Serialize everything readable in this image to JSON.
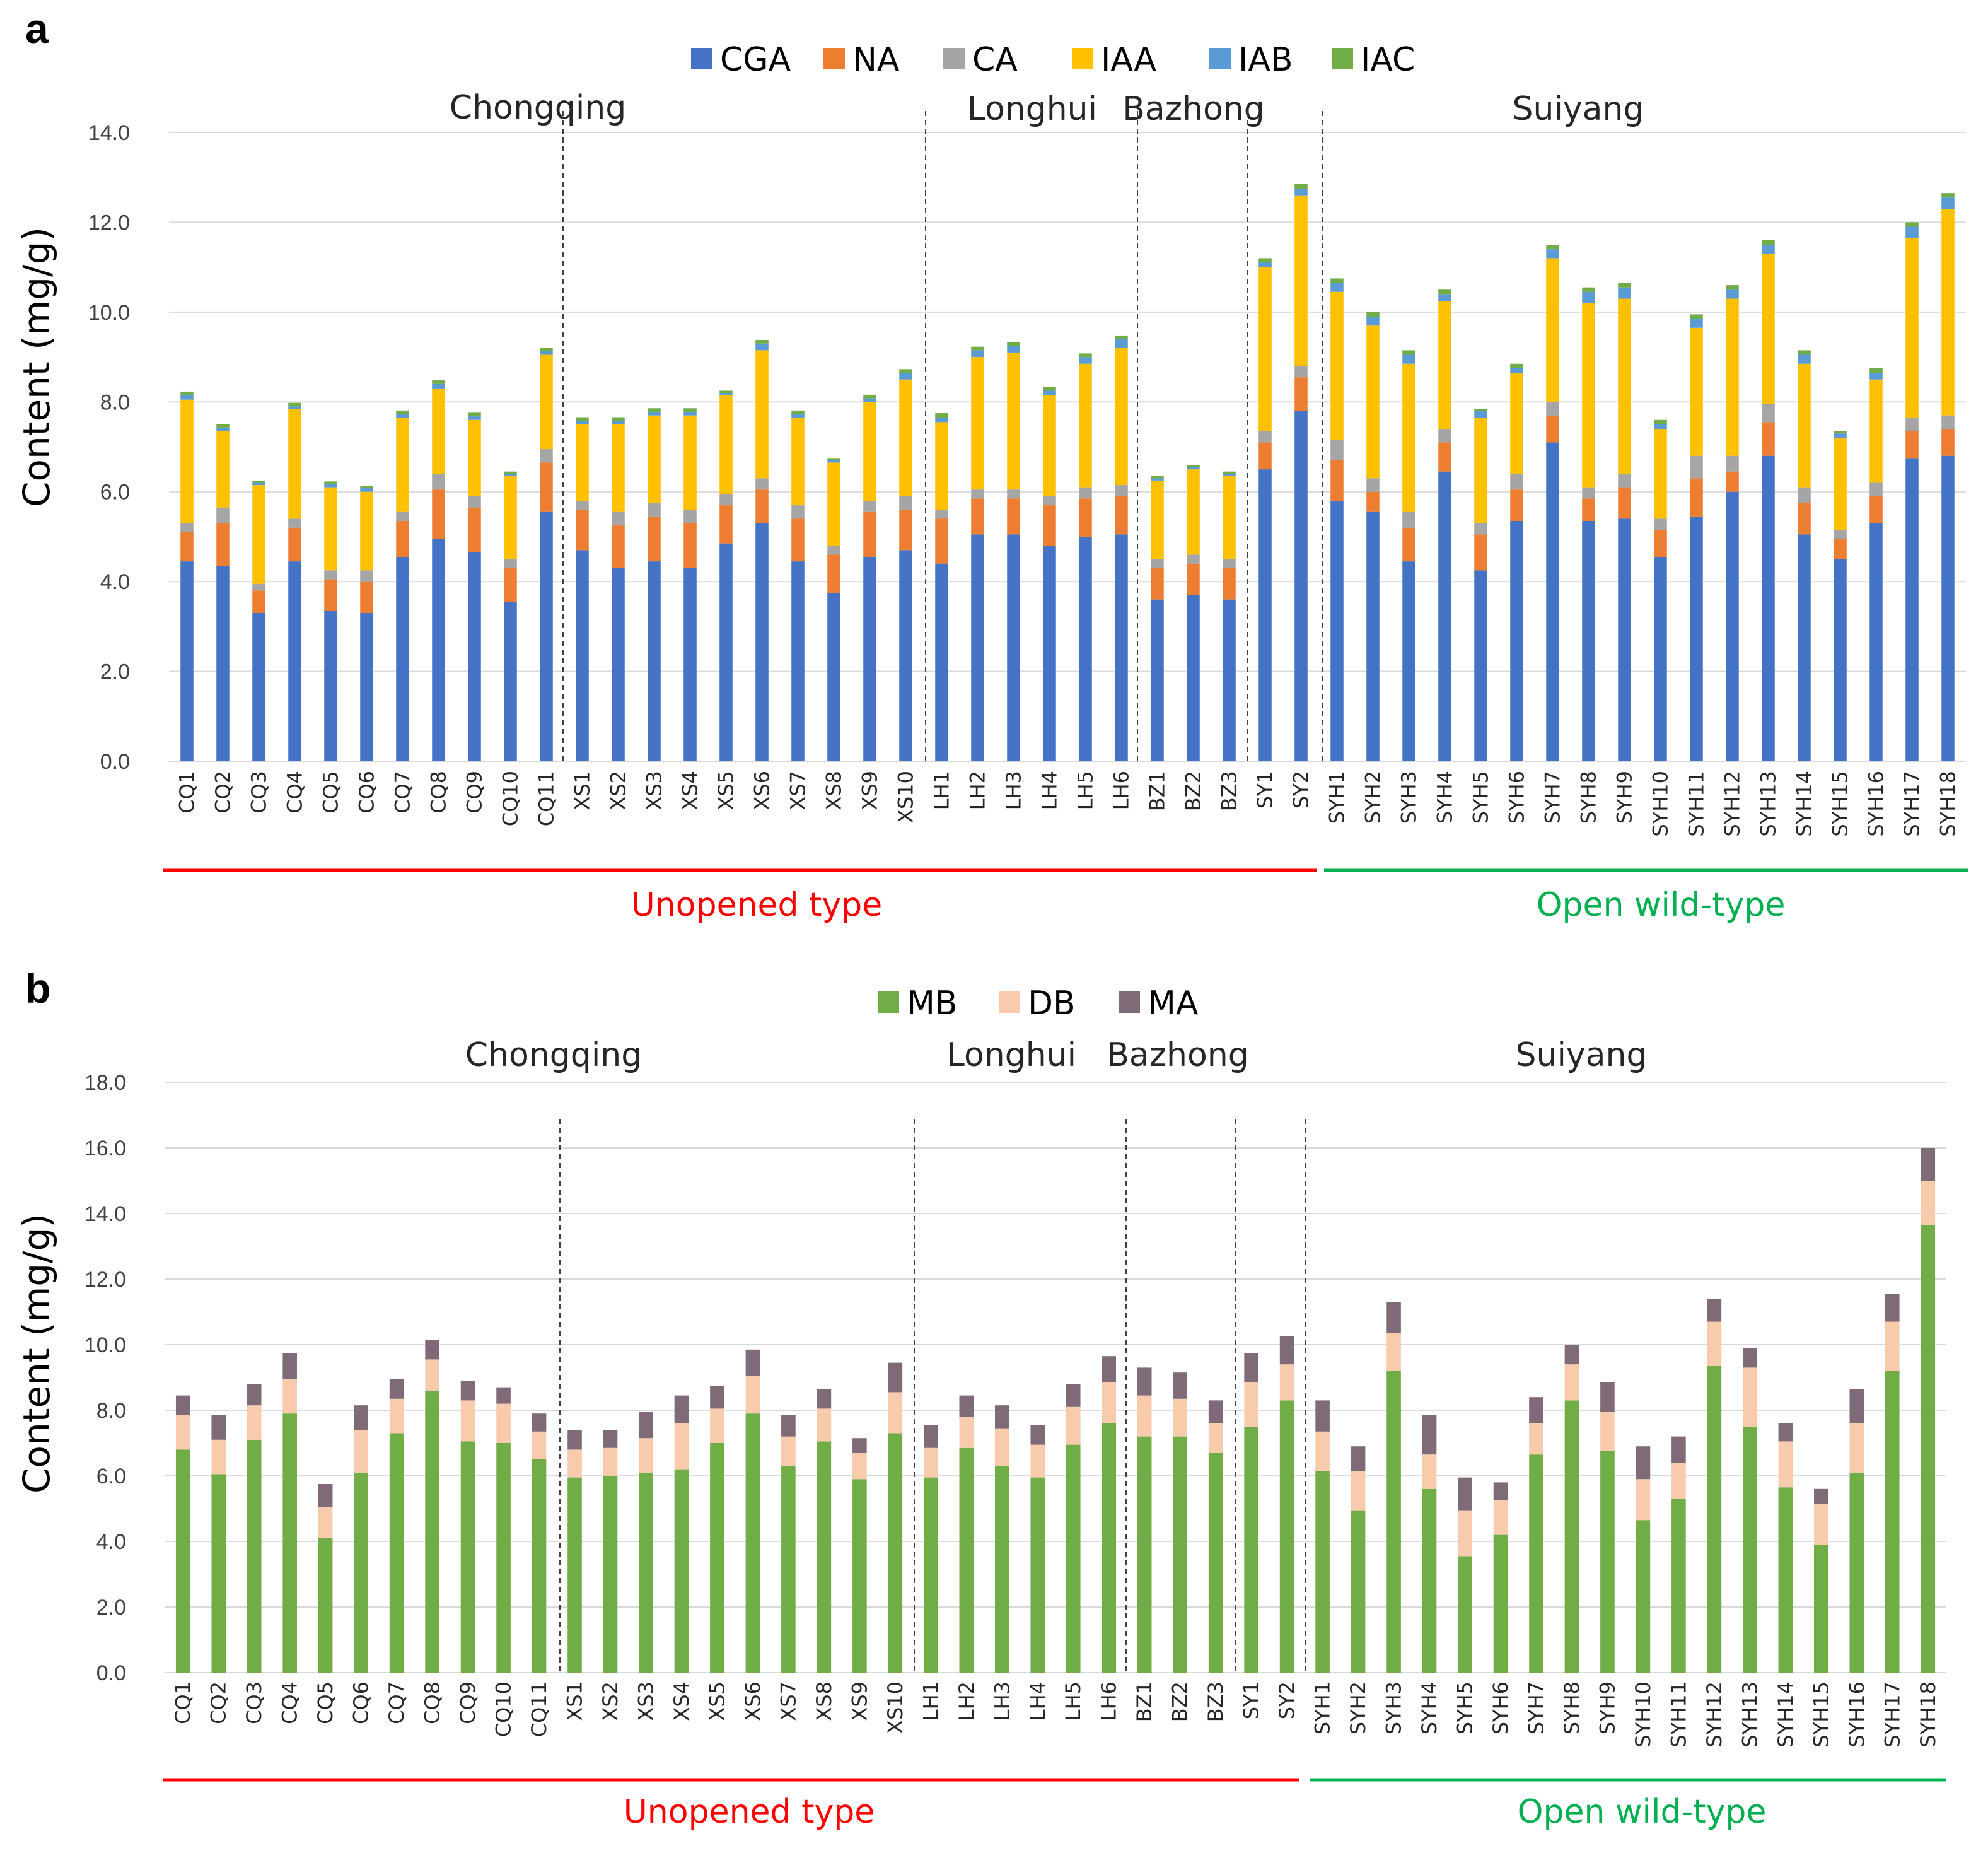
{
  "chart_data": [
    {
      "type": "bar",
      "stacked": true,
      "panel": "a",
      "ylabel": "Content (mg/g)",
      "ylim": [
        0,
        14
      ],
      "yticks": [
        "0.0",
        "2.0",
        "4.0",
        "6.0",
        "8.0",
        "10.0",
        "12.0",
        "14.0"
      ],
      "grid": true,
      "legend_position": "top",
      "categories": [
        "CQ1",
        "CQ2",
        "CQ3",
        "CQ4",
        "CQ5",
        "CQ6",
        "CQ7",
        "CQ8",
        "CQ9",
        "CQ10",
        "CQ11",
        "XS1",
        "XS2",
        "XS3",
        "XS4",
        "XS5",
        "XS6",
        "XS7",
        "XS8",
        "XS9",
        "XS10",
        "LH1",
        "LH2",
        "LH3",
        "LH4",
        "LH5",
        "LH6",
        "BZ1",
        "BZ2",
        "BZ3",
        "SY1",
        "SY2",
        "SYH1",
        "SYH2",
        "SYH3",
        "SYH4",
        "SYH5",
        "SYH6",
        "SYH7",
        "SYH8",
        "SYH9",
        "SYH10",
        "SYH11",
        "SYH12",
        "SYH13",
        "SYH14",
        "SYH15",
        "SYH16",
        "SYH17",
        "SYH18"
      ],
      "series": [
        {
          "name": "CGA",
          "color": "#4472C4",
          "values": [
            4.45,
            4.35,
            3.3,
            4.45,
            3.35,
            3.3,
            4.55,
            4.95,
            4.65,
            3.55,
            5.55,
            4.7,
            4.3,
            4.45,
            4.3,
            4.85,
            5.3,
            4.45,
            3.75,
            4.55,
            4.7,
            4.4,
            5.05,
            5.05,
            4.8,
            5.0,
            5.05,
            3.6,
            3.7,
            3.6,
            6.5,
            7.8,
            5.8,
            5.55,
            4.45,
            6.45,
            4.25,
            5.35,
            7.1,
            5.35,
            5.4,
            4.55,
            5.45,
            6.0,
            6.8,
            5.05,
            4.5,
            5.3,
            6.75,
            6.8
          ]
        },
        {
          "name": "NA",
          "color": "#ED7D31",
          "values": [
            0.65,
            0.95,
            0.5,
            0.75,
            0.7,
            0.7,
            0.8,
            1.1,
            1.0,
            0.75,
            1.1,
            0.9,
            0.95,
            1.0,
            1.0,
            0.85,
            0.75,
            0.95,
            0.85,
            1.0,
            0.9,
            1.0,
            0.8,
            0.8,
            0.9,
            0.85,
            0.85,
            0.7,
            0.7,
            0.7,
            0.6,
            0.75,
            0.9,
            0.45,
            0.75,
            0.65,
            0.8,
            0.7,
            0.6,
            0.5,
            0.7,
            0.6,
            0.85,
            0.45,
            0.75,
            0.7,
            0.45,
            0.6,
            0.6,
            0.6
          ]
        },
        {
          "name": "CA",
          "color": "#A5A5A5",
          "values": [
            0.2,
            0.35,
            0.15,
            0.2,
            0.2,
            0.25,
            0.2,
            0.35,
            0.25,
            0.2,
            0.3,
            0.2,
            0.3,
            0.3,
            0.3,
            0.25,
            0.25,
            0.3,
            0.2,
            0.25,
            0.3,
            0.2,
            0.2,
            0.2,
            0.2,
            0.25,
            0.25,
            0.2,
            0.2,
            0.2,
            0.25,
            0.25,
            0.45,
            0.3,
            0.35,
            0.3,
            0.25,
            0.35,
            0.3,
            0.25,
            0.3,
            0.25,
            0.5,
            0.35,
            0.4,
            0.35,
            0.2,
            0.3,
            0.3,
            0.3
          ]
        },
        {
          "name": "IAA",
          "color": "#FFC000",
          "values": [
            2.75,
            1.7,
            2.2,
            2.45,
            1.85,
            1.75,
            2.1,
            1.9,
            1.7,
            1.85,
            2.1,
            1.7,
            1.95,
            1.95,
            2.1,
            2.2,
            2.85,
            1.95,
            1.85,
            2.2,
            2.6,
            1.95,
            2.95,
            3.05,
            2.25,
            2.75,
            3.05,
            1.75,
            1.9,
            1.85,
            3.65,
            3.8,
            3.3,
            3.4,
            3.3,
            2.85,
            2.35,
            2.25,
            3.2,
            4.1,
            3.9,
            2.0,
            2.85,
            3.5,
            3.35,
            2.75,
            2.05,
            2.3,
            4.0,
            4.6
          ]
        },
        {
          "name": "IAB",
          "color": "#5B9BD5",
          "values": [
            0.1,
            0.08,
            0.05,
            0.05,
            0.08,
            0.08,
            0.08,
            0.1,
            0.08,
            0.05,
            0.08,
            0.08,
            0.08,
            0.08,
            0.08,
            0.05,
            0.15,
            0.08,
            0.05,
            0.08,
            0.15,
            0.1,
            0.15,
            0.15,
            0.1,
            0.15,
            0.2,
            0.05,
            0.05,
            0.05,
            0.1,
            0.15,
            0.2,
            0.2,
            0.2,
            0.15,
            0.15,
            0.1,
            0.2,
            0.25,
            0.25,
            0.1,
            0.2,
            0.2,
            0.2,
            0.2,
            0.1,
            0.15,
            0.25,
            0.25
          ]
        },
        {
          "name": "IAC",
          "color": "#70AD47",
          "values": [
            0.08,
            0.08,
            0.05,
            0.08,
            0.05,
            0.05,
            0.08,
            0.08,
            0.08,
            0.05,
            0.08,
            0.08,
            0.08,
            0.08,
            0.08,
            0.05,
            0.08,
            0.08,
            0.05,
            0.08,
            0.08,
            0.1,
            0.08,
            0.08,
            0.08,
            0.08,
            0.08,
            0.05,
            0.05,
            0.05,
            0.1,
            0.1,
            0.1,
            0.1,
            0.1,
            0.1,
            0.05,
            0.1,
            0.1,
            0.1,
            0.1,
            0.1,
            0.1,
            0.1,
            0.1,
            0.1,
            0.05,
            0.1,
            0.1,
            0.1
          ]
        }
      ],
      "regions": [
        "Chongqing",
        "Longhui",
        "Bazhong",
        "Suiyang"
      ],
      "groups": [
        {
          "label": "Unopened type",
          "color": "#FF0000"
        },
        {
          "label": "Open wild-type",
          "color": "#00B050"
        }
      ]
    },
    {
      "type": "bar",
      "stacked": true,
      "panel": "b",
      "ylabel": "Content (mg/g)",
      "ylim": [
        0,
        18
      ],
      "yticks": [
        "0.0",
        "2.0",
        "4.0",
        "6.0",
        "8.0",
        "10.0",
        "12.0",
        "14.0",
        "16.0",
        "18.0"
      ],
      "grid": true,
      "legend_position": "top",
      "categories": [
        "CQ1",
        "CQ2",
        "CQ3",
        "CQ4",
        "CQ5",
        "CQ6",
        "CQ7",
        "CQ8",
        "CQ9",
        "CQ10",
        "CQ11",
        "XS1",
        "XS2",
        "XS3",
        "XS4",
        "XS5",
        "XS6",
        "XS7",
        "XS8",
        "XS9",
        "XS10",
        "LH1",
        "LH2",
        "LH3",
        "LH4",
        "LH5",
        "LH6",
        "BZ1",
        "BZ2",
        "BZ3",
        "SY1",
        "SY2",
        "SYH1",
        "SYH2",
        "SYH3",
        "SYH4",
        "SYH5",
        "SYH6",
        "SYH7",
        "SYH8",
        "SYH9",
        "SYH10",
        "SYH11",
        "SYH12",
        "SYH13",
        "SYH14",
        "SYH15",
        "SYH16",
        "SYH17",
        "SYH18"
      ],
      "series": [
        {
          "name": "MB",
          "color": "#70AD47",
          "values": [
            6.8,
            6.05,
            7.1,
            7.9,
            4.1,
            6.1,
            7.3,
            8.6,
            7.05,
            7.0,
            6.5,
            5.95,
            6.0,
            6.1,
            6.2,
            7.0,
            7.9,
            6.3,
            7.05,
            5.9,
            7.3,
            5.95,
            6.85,
            6.3,
            5.95,
            6.95,
            7.6,
            7.2,
            7.2,
            6.7,
            7.5,
            8.3,
            6.15,
            4.95,
            9.2,
            5.6,
            3.55,
            4.2,
            6.65,
            8.3,
            6.75,
            4.65,
            5.3,
            9.35,
            7.5,
            5.65,
            3.9,
            6.1,
            9.2,
            13.65
          ]
        },
        {
          "name": "DB",
          "color": "#F8CBAD",
          "values": [
            1.05,
            1.05,
            1.05,
            1.05,
            0.95,
            1.3,
            1.05,
            0.95,
            1.25,
            1.2,
            0.85,
            0.85,
            0.85,
            1.05,
            1.4,
            1.05,
            1.15,
            0.9,
            1.0,
            0.8,
            1.25,
            0.9,
            0.95,
            1.15,
            1.0,
            1.15,
            1.25,
            1.25,
            1.15,
            0.9,
            1.35,
            1.1,
            1.2,
            1.2,
            1.15,
            1.05,
            1.4,
            1.05,
            0.95,
            1.1,
            1.2,
            1.25,
            1.1,
            1.35,
            1.8,
            1.4,
            1.25,
            1.5,
            1.5,
            1.35
          ]
        },
        {
          "name": "MA",
          "color": "#7F6A77",
          "values": [
            0.6,
            0.75,
            0.65,
            0.8,
            0.7,
            0.75,
            0.6,
            0.6,
            0.6,
            0.5,
            0.55,
            0.6,
            0.55,
            0.8,
            0.85,
            0.7,
            0.8,
            0.65,
            0.6,
            0.45,
            0.9,
            0.7,
            0.65,
            0.7,
            0.6,
            0.7,
            0.8,
            0.85,
            0.8,
            0.7,
            0.9,
            0.85,
            0.95,
            0.75,
            0.95,
            1.2,
            1.0,
            0.55,
            0.8,
            0.6,
            0.9,
            1.0,
            0.8,
            0.7,
            0.6,
            0.55,
            0.45,
            1.05,
            0.85,
            1.0
          ]
        }
      ],
      "regions": [
        "Chongqing",
        "Longhui",
        "Bazhong",
        "Suiyang"
      ],
      "groups": [
        {
          "label": "Unopened type",
          "color": "#FF0000"
        },
        {
          "label": "Open wild-type",
          "color": "#00B050"
        }
      ]
    }
  ]
}
